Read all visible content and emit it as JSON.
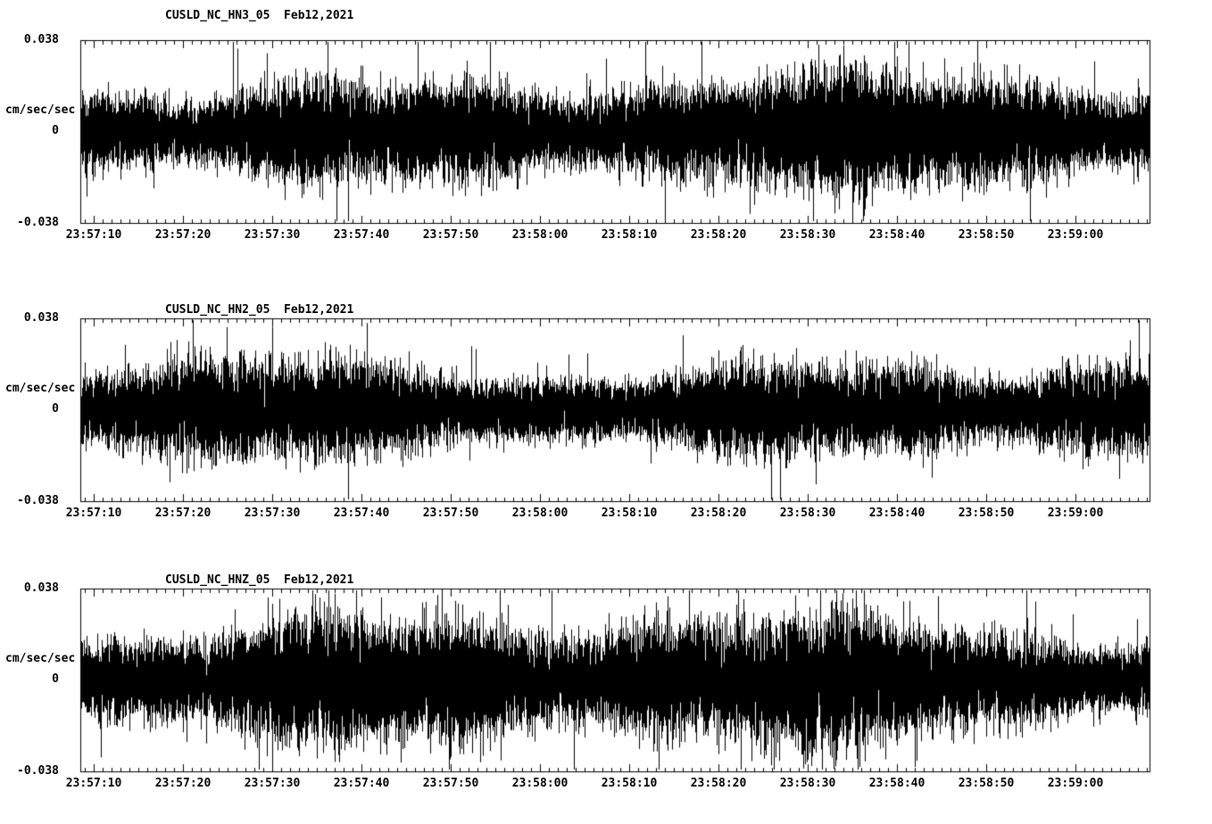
{
  "page": {
    "background": "#ffffff",
    "foreground": "#000000"
  },
  "chart_data": [
    {
      "type": "line",
      "title": "CUSLD_NC_HN3_05  Feb12,2021",
      "station": "CUSLD_NC_HN3_05",
      "date": "Feb12,2021",
      "ylabel": "cm/sec/sec",
      "ylim": [
        -0.038,
        0.038
      ],
      "yticks": [
        "0.038",
        "0",
        "-0.038"
      ],
      "xticks": [
        "23:57:10",
        "23:57:20",
        "23:57:30",
        "23:57:40",
        "23:57:50",
        "23:58:00",
        "23:58:10",
        "23:58:20",
        "23:58:30",
        "23:58:40",
        "23:58:50",
        "23:59:00"
      ],
      "x_start": "23:57:08",
      "x_end": "23:59:08",
      "signal": "continuous seismic ground-acceleration noise, zero-mean",
      "approx_rms": 0.009,
      "approx_peak": 0.034,
      "seed": 11,
      "grid": false,
      "legend": "none"
    },
    {
      "type": "line",
      "title": "CUSLD_NC_HN2_05  Feb12,2021",
      "station": "CUSLD_NC_HN2_05",
      "date": "Feb12,2021",
      "ylabel": "cm/sec/sec",
      "ylim": [
        -0.038,
        0.038
      ],
      "yticks": [
        "0.038",
        "0",
        "-0.038"
      ],
      "xticks": [
        "23:57:10",
        "23:57:20",
        "23:57:30",
        "23:57:40",
        "23:57:50",
        "23:58:00",
        "23:58:10",
        "23:58:20",
        "23:58:30",
        "23:58:40",
        "23:58:50",
        "23:59:00"
      ],
      "x_start": "23:57:08",
      "x_end": "23:59:08",
      "signal": "continuous seismic ground-acceleration noise, zero-mean",
      "approx_rms": 0.008,
      "approx_peak": 0.033,
      "seed": 22,
      "grid": false,
      "legend": "none"
    },
    {
      "type": "line",
      "title": "CUSLD_NC_HNZ_05  Feb12,2021",
      "station": "CUSLD_NC_HNZ_05",
      "date": "Feb12,2021",
      "ylabel": "cm/sec/sec",
      "ylim": [
        -0.038,
        0.038
      ],
      "yticks": [
        "0.038",
        "0",
        "-0.038"
      ],
      "xticks": [
        "23:57:10",
        "23:57:20",
        "23:57:30",
        "23:57:40",
        "23:57:50",
        "23:58:00",
        "23:58:10",
        "23:58:20",
        "23:58:30",
        "23:58:40",
        "23:58:50",
        "23:59:00"
      ],
      "x_start": "23:57:08",
      "x_end": "23:59:08",
      "signal": "continuous seismic ground-acceleration noise, zero-mean",
      "approx_rms": 0.01,
      "approx_peak": 0.036,
      "seed": 33,
      "grid": false,
      "legend": "none"
    }
  ]
}
